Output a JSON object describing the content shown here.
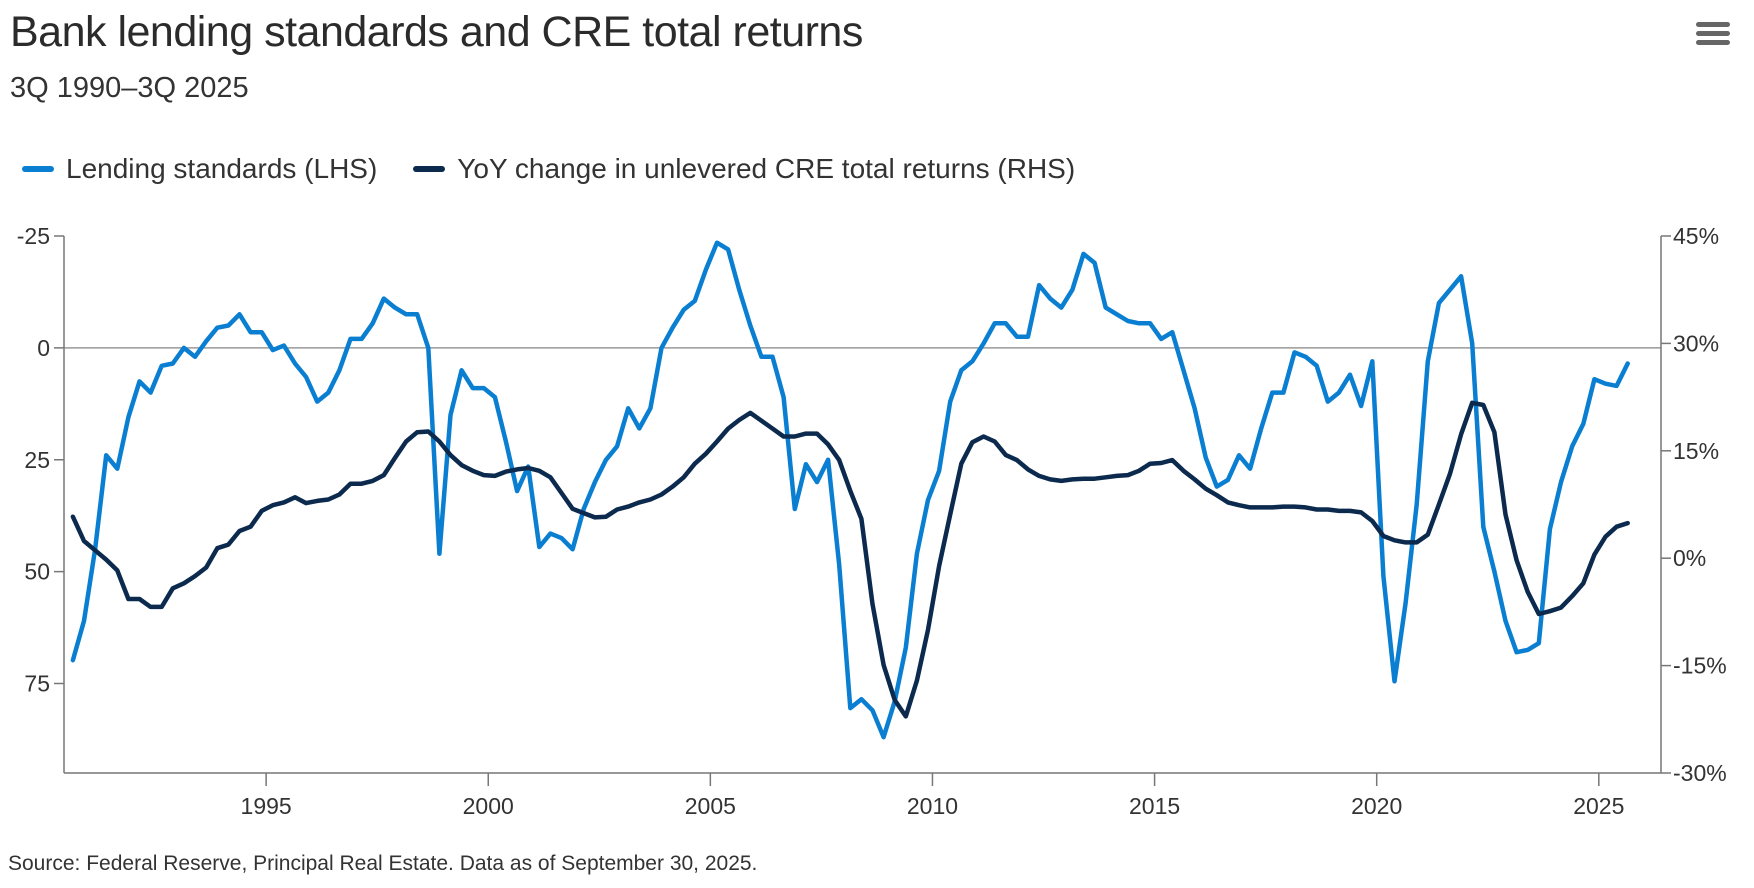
{
  "header": {
    "title": "Bank lending standards and CRE total returns",
    "subtitle": "3Q 1990–3Q 2025",
    "menu_icon": "hamburger-menu-icon"
  },
  "legend": [
    {
      "label": "Lending standards (LHS)",
      "color": "#0a7fd2"
    },
    {
      "label": "YoY change in unlevered CRE total returns (RHS)",
      "color": "#0b2a4e"
    }
  ],
  "source": "Source: Federal Reserve, Principal Real Estate. Data as of September 30, 2025.",
  "chart_data": {
    "type": "line",
    "title": "Bank lending standards and CRE total returns",
    "subtitle": "3Q 1990–3Q 2025",
    "x_start": "3Q 1990",
    "x_frequency": "quarterly",
    "x_ticks": [
      "1995",
      "2000",
      "2005",
      "2010",
      "2015",
      "2020",
      "2025"
    ],
    "xlim": [
      1990.45,
      2026.4
    ],
    "y_left": {
      "reversed": true,
      "lim": [
        -25,
        95
      ],
      "ticks": [
        "-25",
        "0",
        "25",
        "50",
        "75"
      ],
      "tick_values": [
        -25,
        0,
        25,
        50,
        75
      ]
    },
    "y_right": {
      "lim": [
        -30,
        45
      ],
      "ticks": [
        "45%",
        "30%",
        "15%",
        "0%",
        "-15%",
        "-30%"
      ],
      "tick_values": [
        45,
        30,
        15,
        0,
        -15,
        -30
      ]
    },
    "reference_line": {
      "axis": "left",
      "value": 0
    },
    "grid": false,
    "legend_position": "top-left",
    "series": [
      {
        "name": "Lending standards (LHS)",
        "axis": "left",
        "color": "#0a7fd2",
        "values": [
          69.8,
          61,
          45,
          24,
          27,
          15.5,
          7.5,
          10,
          4,
          3.5,
          0,
          2,
          -1.5,
          -4.5,
          -5,
          -7.5,
          -3.5,
          -3.5,
          0.5,
          -0.5,
          3.5,
          6.5,
          12,
          10,
          5,
          -2,
          -2,
          -5.5,
          -11,
          -9,
          -7.5,
          -7.5,
          0,
          46,
          15,
          5,
          9,
          9,
          11,
          21,
          32,
          26.5,
          44.5,
          41.5,
          42.5,
          45,
          36,
          30,
          25,
          22,
          13.5,
          18,
          13.5,
          0,
          -4.5,
          -8.5,
          -10.5,
          -17.5,
          -23.5,
          -22,
          -13,
          -5,
          2,
          2,
          11,
          36,
          26,
          30,
          25,
          48.5,
          80.5,
          78.5,
          81,
          87,
          79,
          67,
          46,
          34,
          27.5,
          12,
          5,
          3,
          -1,
          -5.5,
          -5.5,
          -2.5,
          -2.5,
          -14,
          -11,
          -9,
          -13,
          -21,
          -19,
          -9,
          -7.5,
          -6,
          -5.5,
          -5.5,
          -2,
          -3.5,
          5,
          13.5,
          24.5,
          31,
          29.5,
          24,
          27,
          18,
          10,
          10,
          1,
          2,
          4,
          12,
          10,
          6,
          13,
          3,
          51,
          74.5,
          57,
          35,
          3,
          -10,
          -13,
          -16,
          -1,
          40,
          50,
          61,
          68,
          67.5,
          66,
          40.5,
          30,
          22,
          17,
          7,
          8,
          8.5,
          3.5
        ]
      },
      {
        "name": "YoY change in unlevered CRE total returns (RHS)",
        "axis": "right",
        "color": "#0b2a4e",
        "values": [
          5.8,
          2.4,
          1.1,
          -0.2,
          -1.7,
          -5.7,
          -5.7,
          -6.8,
          -6.8,
          -4.2,
          -3.5,
          -2.5,
          -1.3,
          1.4,
          1.9,
          3.8,
          4.4,
          6.6,
          7.4,
          7.8,
          8.5,
          7.7,
          8.0,
          8.2,
          8.9,
          10.4,
          10.4,
          10.8,
          11.6,
          14.0,
          16.3,
          17.6,
          17.7,
          16.3,
          14.4,
          13.0,
          12.2,
          11.6,
          11.5,
          12.1,
          12.4,
          12.6,
          12.2,
          11.3,
          9.1,
          6.9,
          6.3,
          5.7,
          5.8,
          6.8,
          7.2,
          7.8,
          8.2,
          8.9,
          10.0,
          11.3,
          13.2,
          14.6,
          16.3,
          18.1,
          19.3,
          20.3,
          19.2,
          18.1,
          17.0,
          17.0,
          17.4,
          17.4,
          15.9,
          13.7,
          9.4,
          5.5,
          -6.4,
          -14.9,
          -19.8,
          -22.1,
          -17.1,
          -10,
          -1.1,
          6.1,
          13.2,
          16.2,
          17,
          16.3,
          14.4,
          13.7,
          12.4,
          11.5,
          11,
          10.8,
          11,
          11.1,
          11.1,
          11.3,
          11.5,
          11.6,
          12.2,
          13.2,
          13.3,
          13.7,
          12.2,
          11,
          9.7,
          8.8,
          7.8,
          7.4,
          7.1,
          7.1,
          7.1,
          7.2,
          7.2,
          7.1,
          6.8,
          6.8,
          6.6,
          6.6,
          6.4,
          5.2,
          3.1,
          2.5,
          2.2,
          2.2,
          3.3,
          7.5,
          11.8,
          17.3,
          21.7,
          21.4,
          17.6,
          6.1,
          -0.3,
          -4.7,
          -7.8,
          -7.4,
          -6.9,
          -5.3,
          -3.5,
          0.5,
          3,
          4.4,
          4.9
        ]
      }
    ]
  }
}
